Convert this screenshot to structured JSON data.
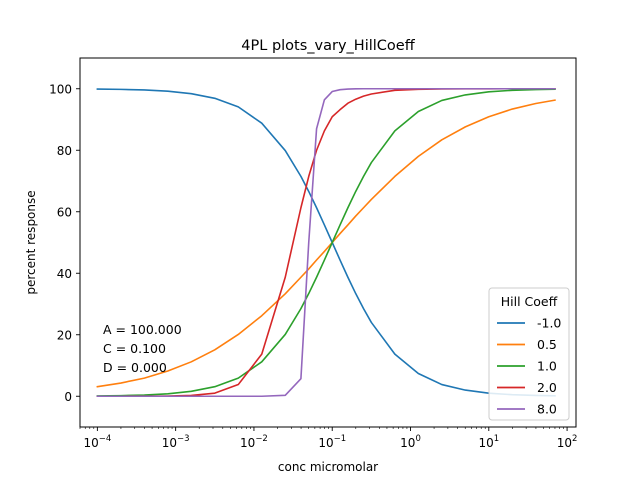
{
  "chart_data": {
    "type": "line",
    "title": "4PL plots_vary_HillCoeff",
    "xlabel": "conc micromolar",
    "ylabel": "percent response",
    "xscale": "log",
    "xlim": [
      6e-05,
      130
    ],
    "ylim": [
      -10,
      110
    ],
    "grid": false,
    "x_ticks": [
      {
        "value": 0.0001,
        "base": "10",
        "exp": "−4"
      },
      {
        "value": 0.001,
        "base": "10",
        "exp": "−3"
      },
      {
        "value": 0.01,
        "base": "10",
        "exp": "−2"
      },
      {
        "value": 0.1,
        "base": "10",
        "exp": "−1"
      },
      {
        "value": 1,
        "base": "10",
        "exp": "0"
      },
      {
        "value": 10,
        "base": "10",
        "exp": "1"
      },
      {
        "value": 100,
        "base": "10",
        "exp": "2"
      }
    ],
    "y_ticks": [
      {
        "value": 0,
        "label": "0"
      },
      {
        "value": 20,
        "label": "20"
      },
      {
        "value": 40,
        "label": "40"
      },
      {
        "value": 60,
        "label": "60"
      },
      {
        "value": 80,
        "label": "80"
      },
      {
        "value": 100,
        "label": "100"
      }
    ],
    "x": [
      0.0001,
      0.0001995,
      0.0003981,
      0.0007943,
      0.001585,
      0.003162,
      0.00631,
      0.01259,
      0.02512,
      0.03981,
      0.05012,
      0.0631,
      0.07943,
      0.1,
      0.1259,
      0.1585,
      0.1995,
      0.2512,
      0.3162,
      0.631,
      1.259,
      2.512,
      5.012,
      10,
      19.95,
      39.81,
      70
    ],
    "series": [
      {
        "name": "-1.0",
        "color": "#1f77b4",
        "values": [
          99.9,
          99.8,
          99.6,
          99.2,
          98.4,
          96.9,
          94.1,
          88.8,
          79.9,
          71.5,
          66.6,
          61.3,
          55.7,
          50.0,
          44.3,
          38.7,
          33.4,
          28.5,
          24.0,
          13.7,
          7.4,
          3.8,
          2.0,
          1.0,
          0.5,
          0.25,
          0.14
        ]
      },
      {
        "name": "0.5",
        "color": "#ff7f0e",
        "values": [
          3.1,
          4.3,
          5.9,
          8.2,
          11.2,
          15.1,
          20.1,
          26.2,
          33.3,
          38.7,
          41.4,
          44.3,
          47.1,
          50.0,
          52.9,
          55.7,
          58.6,
          61.3,
          64.0,
          71.5,
          78.0,
          83.4,
          87.6,
          90.9,
          93.4,
          95.2,
          96.3
        ]
      },
      {
        "name": "1.0",
        "color": "#2ca02c",
        "values": [
          0.1,
          0.2,
          0.4,
          0.8,
          1.6,
          3.1,
          5.9,
          11.2,
          20.1,
          28.5,
          33.4,
          38.7,
          44.3,
          50.0,
          55.7,
          61.3,
          66.6,
          71.5,
          76.0,
          86.3,
          92.6,
          96.2,
          98.0,
          99.0,
          99.5,
          99.75,
          99.86
        ]
      },
      {
        "name": "2.0",
        "color": "#d62728",
        "values": [
          0.0,
          0.0,
          0.02,
          0.06,
          0.25,
          1.0,
          3.8,
          13.7,
          38.7,
          61.3,
          71.5,
          80.0,
          86.3,
          90.9,
          93.2,
          95.3,
          96.6,
          97.6,
          98.3,
          99.5,
          99.8,
          99.95,
          99.98,
          99.99,
          100.0,
          100.0,
          100.0
        ]
      },
      {
        "name": "8.0",
        "color": "#9467bd",
        "values": [
          0.0,
          0.0,
          0.0,
          0.0,
          0.0,
          0.0,
          0.0,
          0.0,
          0.3,
          5.7,
          50.0,
          87.0,
          96.4,
          99.1,
          99.7,
          99.9,
          99.97,
          100.0,
          100.0,
          100.0,
          100.0,
          100.0,
          100.0,
          100.0,
          100.0,
          100.0,
          100.0
        ]
      }
    ],
    "legend": {
      "title": "Hill Coeff",
      "placement": "lower-right"
    },
    "annotations": [
      "A = 100.000",
      "C = 0.100",
      "D = 0.000"
    ]
  }
}
